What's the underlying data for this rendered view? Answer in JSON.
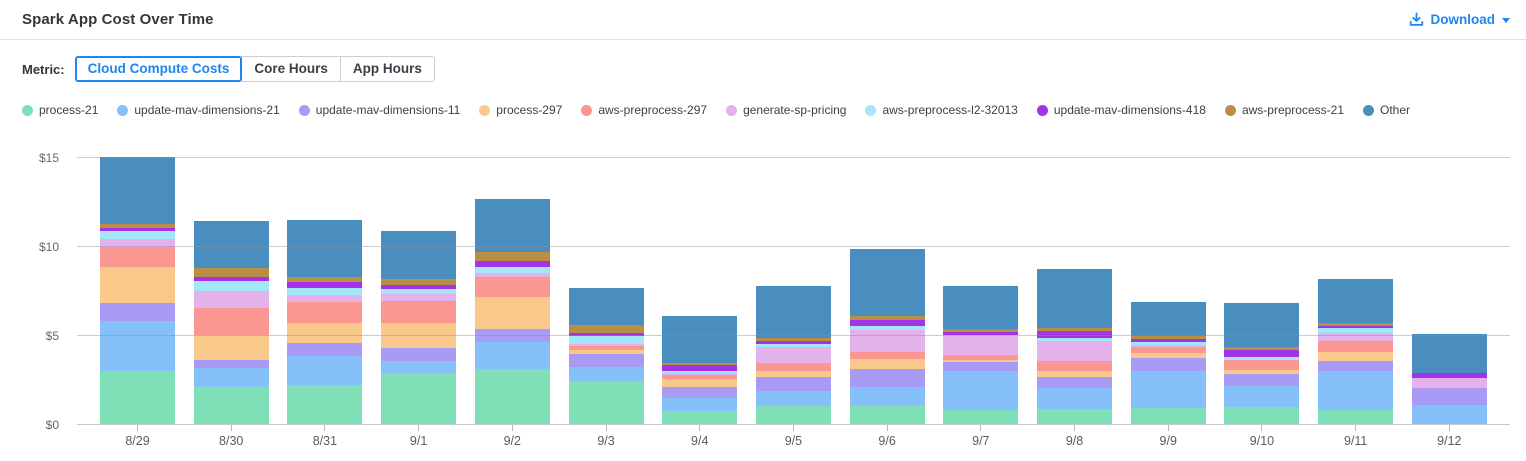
{
  "header": {
    "title": "Spark App Cost Over Time",
    "download_label": "Download"
  },
  "toolbar": {
    "metric_label": "Metric:",
    "tabs": [
      {
        "label": "Cloud Compute Costs",
        "active": true
      },
      {
        "label": "Core Hours",
        "active": false
      },
      {
        "label": "App Hours",
        "active": false
      }
    ]
  },
  "colors": {
    "accent_blue": "#1d86f0",
    "axis_line": "#c5c9cc",
    "grid_line": "#8a8f94",
    "text_dark": "#33383d",
    "text_axis": "#63686d"
  },
  "chart_data": {
    "type": "bar",
    "stacked": true,
    "title": "Spark App Cost Over Time",
    "xlabel": "",
    "ylabel": "Cloud Compute Costs ($)",
    "ylim": [
      0,
      15
    ],
    "y_ticks": [
      {
        "label": "$0",
        "value": 0
      },
      {
        "label": "$5",
        "value": 5
      },
      {
        "label": "$10",
        "value": 10
      },
      {
        "label": "$15",
        "value": 15
      }
    ],
    "grid": true,
    "legend_position": "top",
    "categories": [
      "8/29",
      "8/30",
      "8/31",
      "9/1",
      "9/2",
      "9/3",
      "9/4",
      "9/5",
      "9/6",
      "9/7",
      "9/8",
      "9/9",
      "9/10",
      "9/11",
      "9/12"
    ],
    "series": [
      {
        "name": "process-21",
        "color": "#7fdfb6",
        "values": [
          3.05,
          2.15,
          2.25,
          2.9,
          3.15,
          2.48,
          0.81,
          1.09,
          1.09,
          0.85,
          0.9,
          0.96,
          1.0,
          0.86,
          0
        ]
      },
      {
        "name": "update-mav-dimensions-21",
        "color": "#85c1f8",
        "values": [
          2.8,
          1.05,
          1.65,
          0.7,
          1.5,
          0.77,
          0.69,
          0.85,
          1.03,
          2.18,
          1.18,
          2.06,
          1.22,
          2.16,
          1.13
        ]
      },
      {
        "name": "update-mav-dimensions-11",
        "color": "#a89af5",
        "values": [
          1.0,
          0.45,
          0.7,
          0.75,
          0.75,
          0.75,
          0.66,
          0.75,
          1.03,
          0.51,
          0.64,
          0.73,
          0.66,
          0.6,
          0.96
        ]
      },
      {
        "name": "process-297",
        "color": "#f8c98b",
        "values": [
          2.05,
          1.4,
          1.15,
          1.4,
          1.8,
          0.19,
          0.43,
          0.34,
          0.56,
          0.1,
          0.3,
          0.28,
          0.23,
          0.47,
          0
        ]
      },
      {
        "name": "aws-preprocess-297",
        "color": "#fa9793",
        "values": [
          1.1,
          1.55,
          1.15,
          1.2,
          1.1,
          0.23,
          0.22,
          0.45,
          0.38,
          0.32,
          0.6,
          0.37,
          0.56,
          0.66,
          0
        ]
      },
      {
        "name": "generate-sp-pricing",
        "color": "#e5b1eb",
        "values": [
          0.45,
          0.95,
          0.38,
          0.4,
          0.22,
          0.15,
          0.09,
          0.9,
          1.26,
          1.03,
          1.13,
          0.11,
          0,
          0.43,
          0.55
        ]
      },
      {
        "name": "aws-preprocess-l2-32013",
        "color": "#a3e6f8",
        "values": [
          0.45,
          0.55,
          0.38,
          0.3,
          0.38,
          0.43,
          0.13,
          0.19,
          0.19,
          0.09,
          0.15,
          0.17,
          0.15,
          0.26,
          0
        ]
      },
      {
        "name": "update-mav-dimensions-418",
        "color": "#a233e8",
        "values": [
          0.15,
          0.22,
          0.38,
          0.23,
          0.32,
          0.19,
          0.34,
          0.13,
          0.34,
          0.13,
          0.41,
          0.13,
          0.41,
          0.15,
          0.28
        ]
      },
      {
        "name": "aws-preprocess-21",
        "color": "#bb8e45",
        "values": [
          0.25,
          0.48,
          0.28,
          0.34,
          0.5,
          0.41,
          0.11,
          0.21,
          0.23,
          0.19,
          0.15,
          0.17,
          0.17,
          0.15,
          0
        ]
      },
      {
        "name": "Other",
        "color": "#4a8ec0",
        "values": [
          3.75,
          2.65,
          3.18,
          2.68,
          2.98,
          2.1,
          2.64,
          2.89,
          3.79,
          2.4,
          3.3,
          1.95,
          2.47,
          2.46,
          2.18
        ]
      }
    ],
    "totals": [
      15.05,
      11.45,
      11.5,
      10.9,
      12.7,
      7.7,
      6.12,
      7.8,
      9.9,
      7.8,
      8.76,
      6.93,
      6.87,
      8.2,
      5.1
    ]
  }
}
